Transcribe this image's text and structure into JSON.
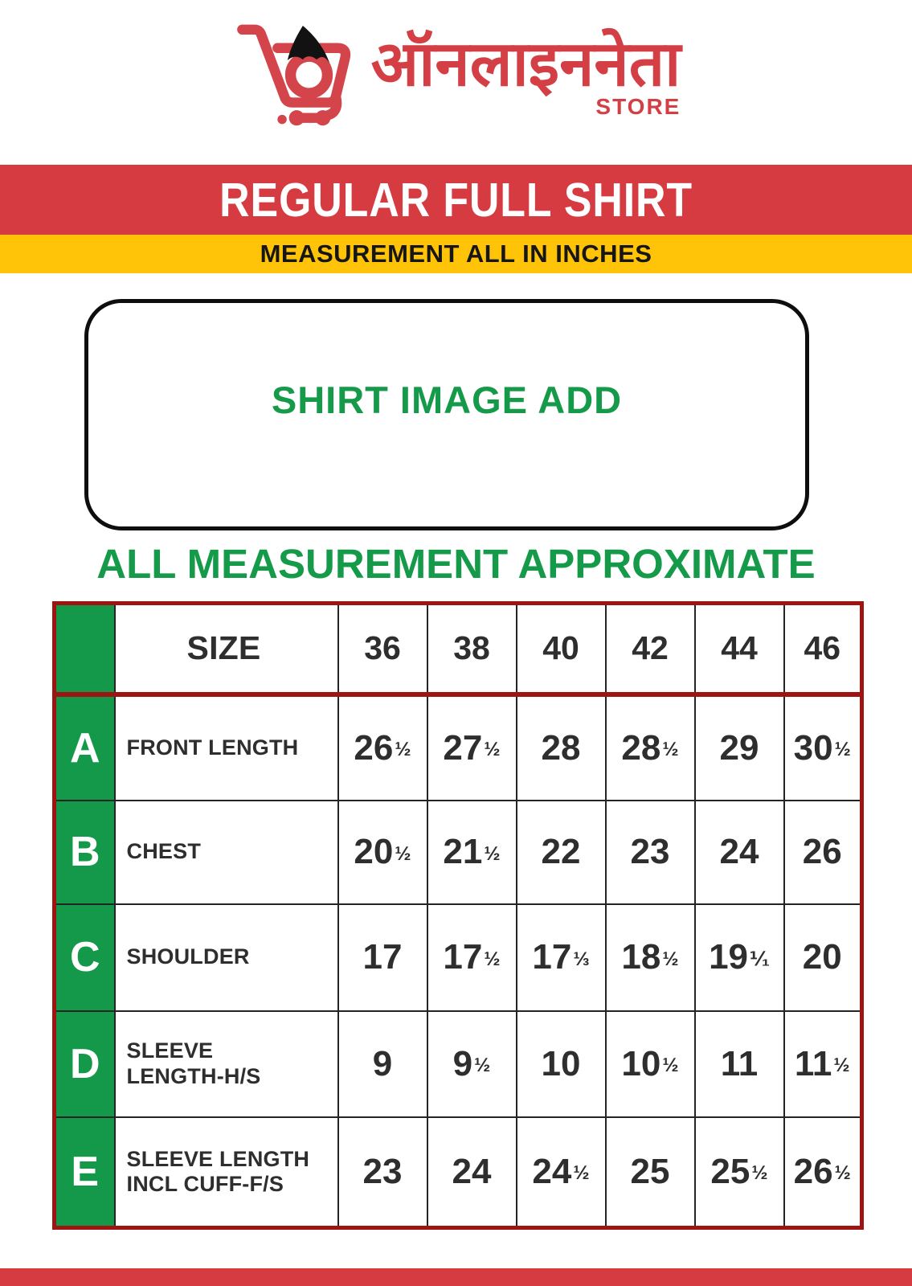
{
  "logo": {
    "icon": "shopping-cart-icon",
    "brand_text": "ऑनलाइननेता",
    "brand_subtext": "STORE"
  },
  "banners": {
    "title": "REGULAR FULL SHIRT",
    "subtitle": "MEASUREMENT ALL IN INCHES"
  },
  "image_placeholder": {
    "label": "SHIRT IMAGE ADD"
  },
  "section_heading": "ALL MEASUREMENT APPROXIMATE",
  "colors": {
    "brand_red": "#D43F46",
    "banner_red": "#D63B41",
    "banner_yellow": "#FFC307",
    "brand_green": "#14994A",
    "table_border_dark_red": "#9D1410",
    "text_dark": "#2E2E2E"
  },
  "chart_data": {
    "type": "table",
    "title": "ALL MEASUREMENT APPROXIMATE",
    "units_note": "MEASUREMENT ALL IN INCHES",
    "columns": [
      "SIZE",
      "36",
      "38",
      "40",
      "42",
      "44",
      "46"
    ],
    "rows": [
      {
        "key": "A",
        "label_lines": [
          "FRONT LENGTH"
        ],
        "values": [
          "26½",
          "27½",
          "28",
          "28½",
          "29",
          "30½"
        ]
      },
      {
        "key": "B",
        "label_lines": [
          "CHEST"
        ],
        "values": [
          "20½",
          "21½",
          "22",
          "23",
          "24",
          "26"
        ]
      },
      {
        "key": "C",
        "label_lines": [
          "SHOULDER"
        ],
        "values": [
          "17",
          "17½",
          "17⅓",
          "18½",
          "19⅟₁",
          "20"
        ]
      },
      {
        "key": "D",
        "label_lines": [
          "SLEEVE",
          "LENGTH-H/S"
        ],
        "values": [
          "9",
          "9½",
          "10",
          "10½",
          "11",
          "11½"
        ]
      },
      {
        "key": "E",
        "label_lines": [
          "SLEEVE LENGTH",
          "INCL CUFF-F/S"
        ],
        "values": [
          "23",
          "24",
          "24½",
          "25",
          "25½",
          "26½"
        ]
      }
    ]
  }
}
